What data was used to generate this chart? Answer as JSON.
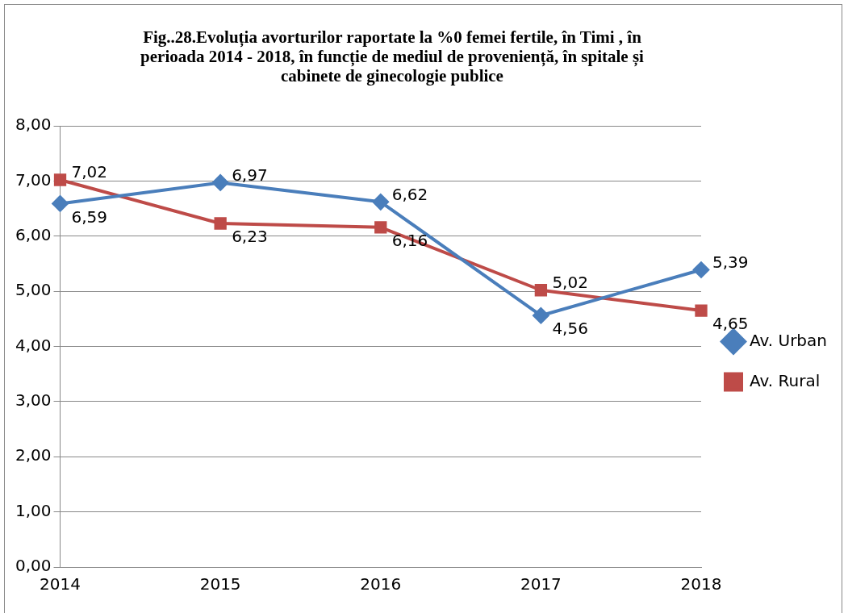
{
  "chart_data": {
    "type": "line",
    "title": "Fig..28.Evoluția avorturilor raportate la %0 femei fertile, în Timi , în perioada 2014 - 2018, în funcție de mediul de proveniență, în spitale și cabinete de ginecologie publice",
    "categories": [
      "2014",
      "2015",
      "2016",
      "2017",
      "2018"
    ],
    "series": [
      {
        "name": "Av. Urban",
        "color": "#4a7ebb",
        "marker": "diamond",
        "values": [
          6.59,
          6.97,
          6.62,
          4.56,
          5.39
        ],
        "value_labels": [
          "6,59",
          "6,97",
          "6,62",
          "4,56",
          "5,39"
        ]
      },
      {
        "name": "Av. Rural",
        "color": "#be4b48",
        "marker": "square",
        "values": [
          7.02,
          6.23,
          6.16,
          5.02,
          4.65
        ],
        "value_labels": [
          "7,02",
          "6,23",
          "6,16",
          "5,02",
          "4,65"
        ]
      }
    ],
    "ylim": [
      0,
      8
    ],
    "yticks": [
      {
        "value": 0,
        "label": "0,00"
      },
      {
        "value": 1,
        "label": "1,00"
      },
      {
        "value": 2,
        "label": "2,00"
      },
      {
        "value": 3,
        "label": "3,00"
      },
      {
        "value": 4,
        "label": "4,00"
      },
      {
        "value": 5,
        "label": "5,00"
      },
      {
        "value": 6,
        "label": "6,00"
      },
      {
        "value": 7,
        "label": "7,00"
      },
      {
        "value": 8,
        "label": "8,00"
      }
    ],
    "grid": "y",
    "legend": "right"
  }
}
